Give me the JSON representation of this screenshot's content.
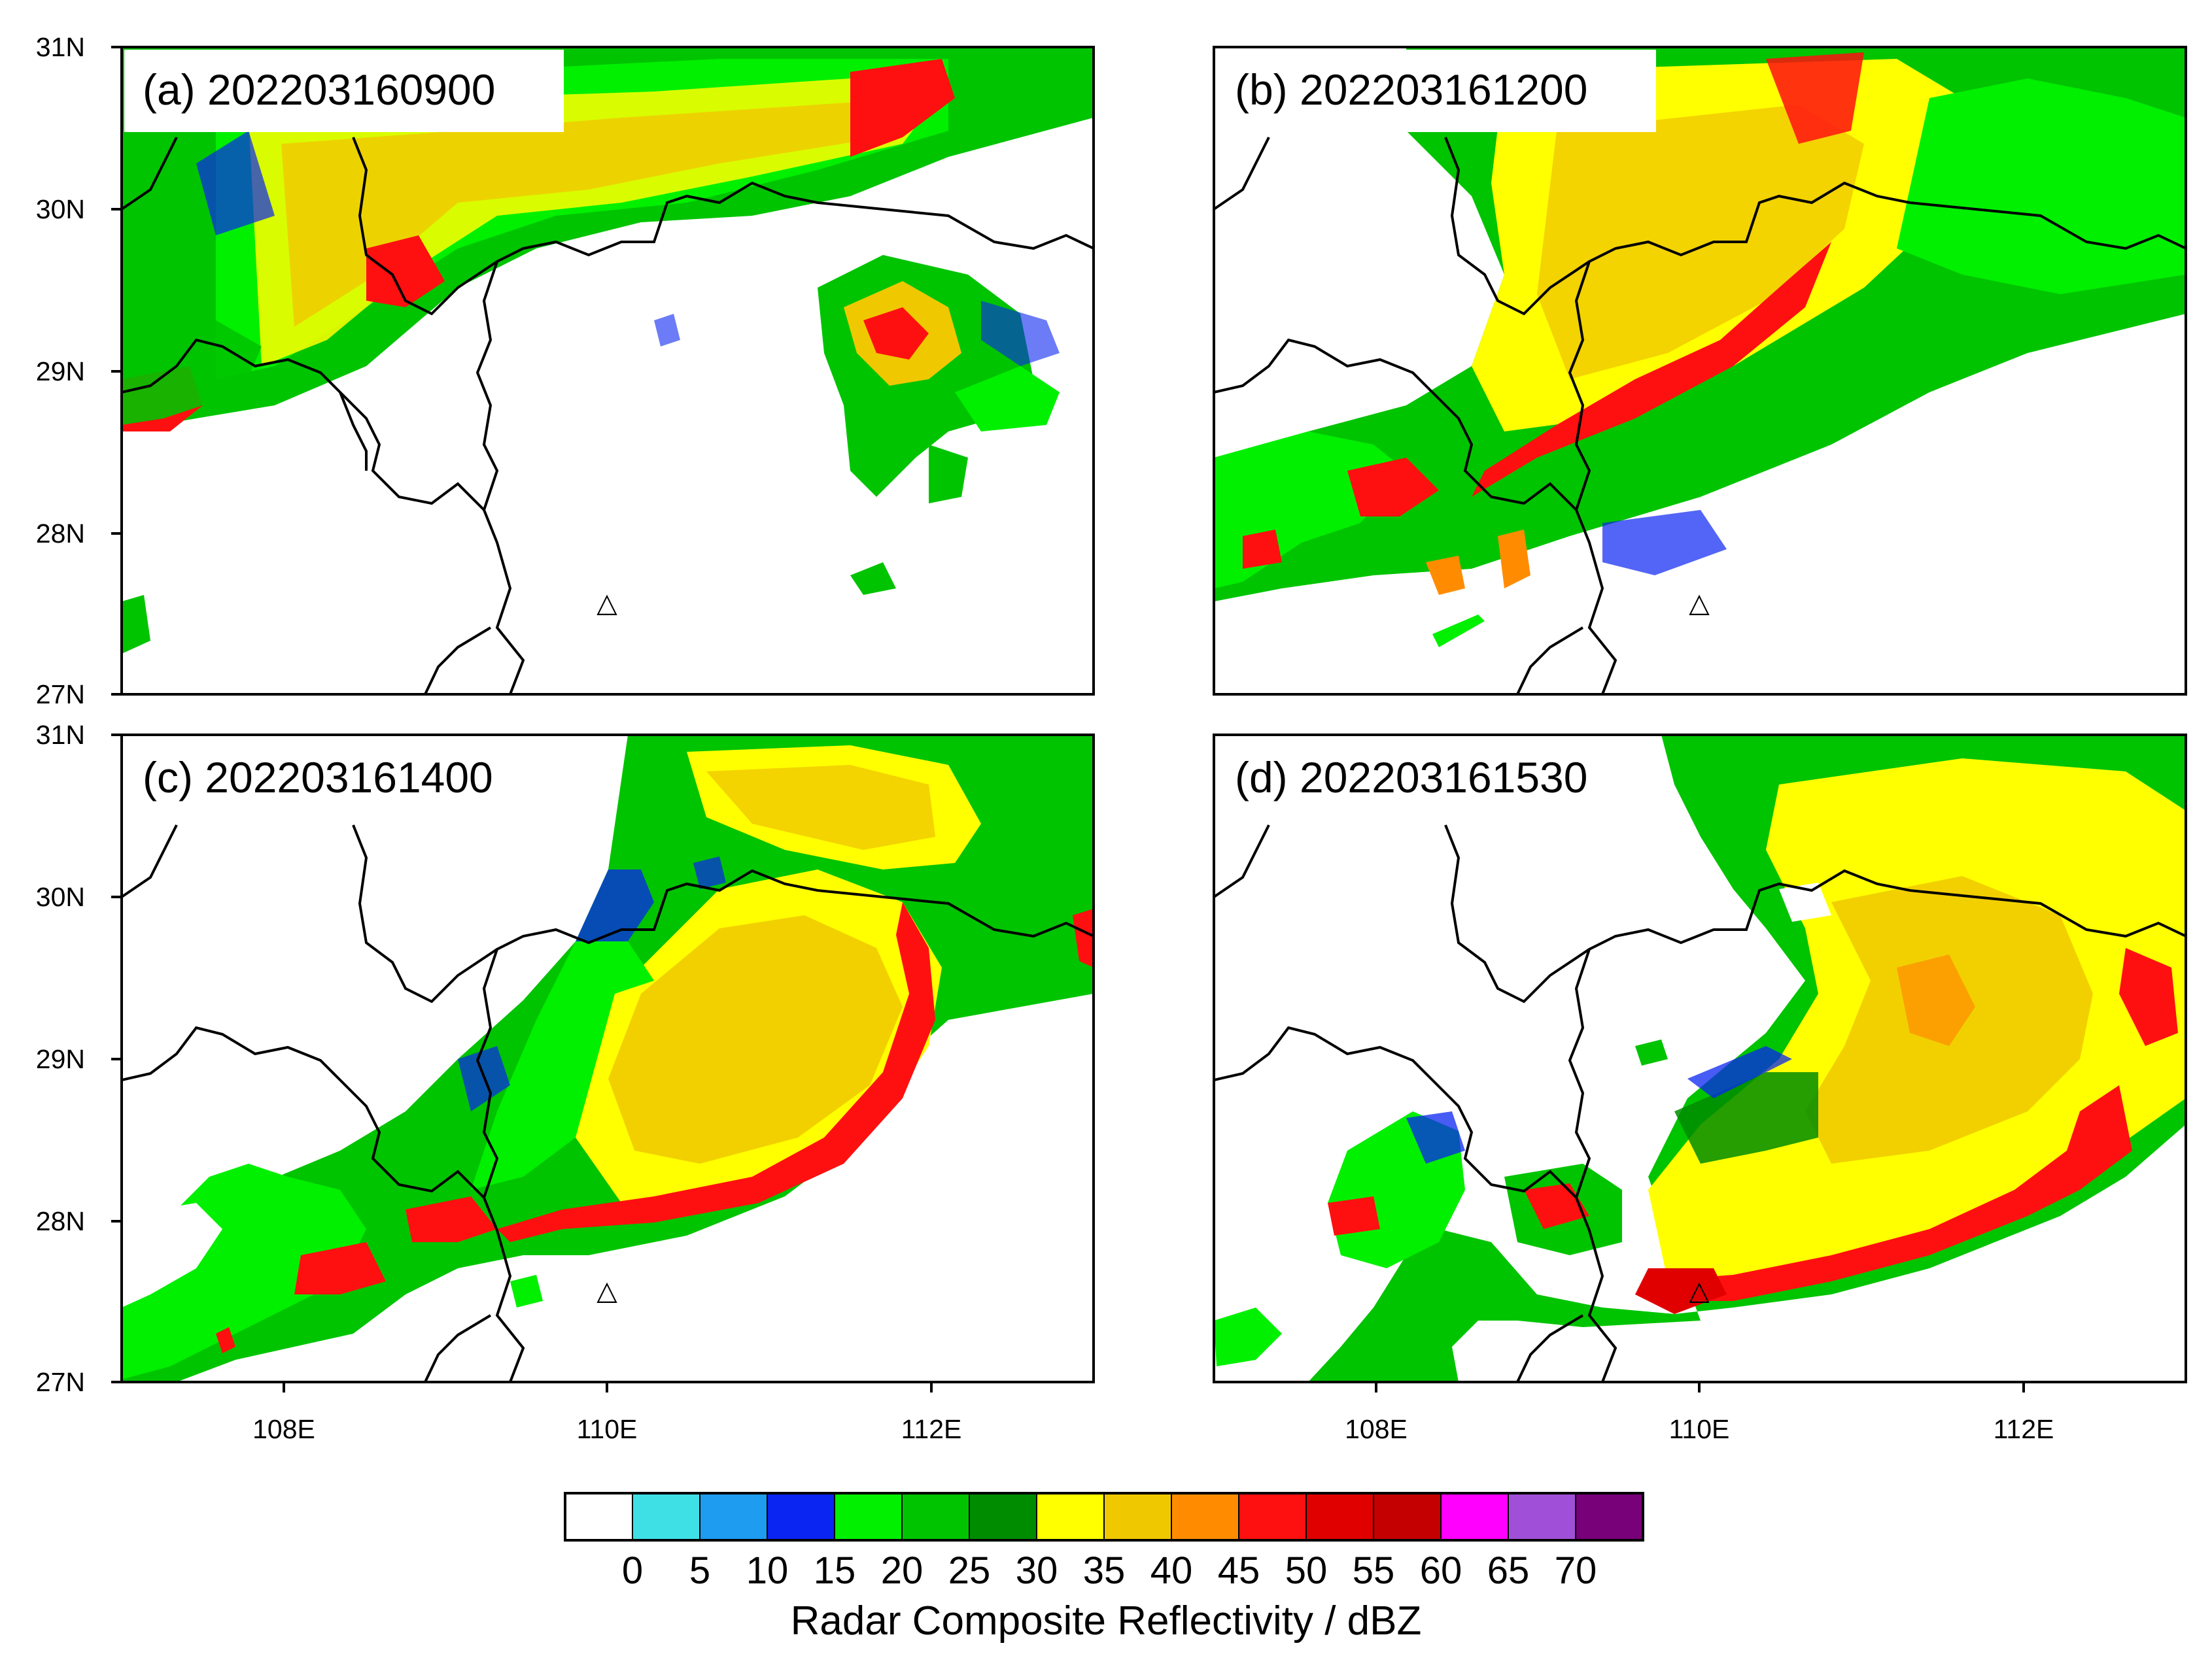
{
  "figure": {
    "colorbar": {
      "title": "Radar Composite Reflectivity / dBZ",
      "labels": [
        "0",
        "5",
        "10",
        "15",
        "20",
        "25",
        "30",
        "35",
        "40",
        "45",
        "50",
        "55",
        "60",
        "65",
        "70"
      ],
      "colors": [
        "#ffffff",
        "#3ee0e6",
        "#1e9cf0",
        "#0a24f2",
        "#00f000",
        "#00c400",
        "#008c00",
        "#ffff00",
        "#f0c800",
        "#ff8c00",
        "#ff1010",
        "#e00000",
        "#c40000",
        "#ff00ff",
        "#a050d8",
        "#780078"
      ]
    },
    "longitude_ticks": [
      "108E",
      "110E",
      "112E"
    ],
    "latitude_ticks": [
      "31N",
      "30N",
      "29N",
      "28N",
      "27N"
    ],
    "panels": [
      {
        "id": "a",
        "title": "(a) 202203160900"
      },
      {
        "id": "b",
        "title": "(b) 202203161200"
      },
      {
        "id": "c",
        "title": "(c) 202203161400"
      },
      {
        "id": "d",
        "title": "(d) 202203161530"
      }
    ],
    "marker": {
      "symbol": "△",
      "lon": 110.0,
      "lat": 27.55
    },
    "map_extent": {
      "lon": [
        107,
        113
      ],
      "lat": [
        27,
        31
      ]
    }
  }
}
